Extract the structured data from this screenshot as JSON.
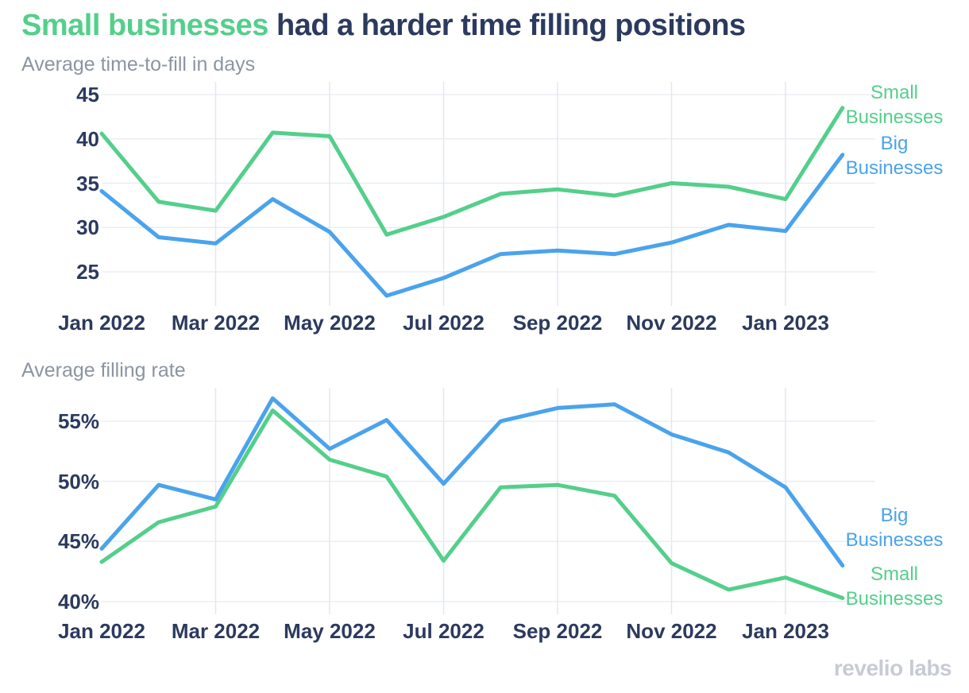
{
  "title": {
    "highlight": "Small businesses",
    "rest": " had a harder time filling positions"
  },
  "watermark": {
    "text": "revelio labs"
  },
  "colors": {
    "small_businesses": "#54CF8B",
    "big_businesses": "#4AA3EC",
    "axis_text": "#2B3A5E",
    "subtitle_text": "#8C95A1",
    "grid_horizontal": "#EBEDF3",
    "grid_vertical": "#E3E7EF",
    "watermark_text": "#C8CBD4",
    "background": "#FFFFFF"
  },
  "chart_data": [
    {
      "type": "line",
      "title": "Average time-to-fill in days",
      "unit": "days",
      "x": [
        "Jan 2022",
        "Feb 2022",
        "Mar 2022",
        "Apr 2022",
        "May 2022",
        "Jun 2022",
        "Jul 2022",
        "Aug 2022",
        "Sep 2022",
        "Oct 2022",
        "Nov 2022",
        "Dec 2022",
        "Jan 2023",
        "Feb 2023"
      ],
      "x_tick_indices": [
        0,
        2,
        4,
        6,
        8,
        10,
        12
      ],
      "x_tick_labels": [
        "Jan 2022",
        "Mar 2022",
        "May 2022",
        "Jul 2022",
        "Sep 2022",
        "Nov 2022",
        "Jan 2023"
      ],
      "y_ticks": [
        45,
        40,
        35,
        30,
        25
      ],
      "y_tick_labels": [
        "45",
        "40",
        "35",
        "30",
        "25"
      ],
      "ylim": [
        21,
        46
      ],
      "grid": true,
      "legend_position": "right",
      "series": [
        {
          "name": "Small Businesses",
          "color_key": "small_businesses",
          "values": [
            40.6,
            32.9,
            31.9,
            40.7,
            40.3,
            29.2,
            31.2,
            33.8,
            34.3,
            33.6,
            35.0,
            34.6,
            33.2,
            43.5
          ]
        },
        {
          "name": "Big Businesses",
          "color_key": "big_businesses",
          "values": [
            34.1,
            28.9,
            28.2,
            33.2,
            29.5,
            22.3,
            24.3,
            27.0,
            27.4,
            27.0,
            28.3,
            30.3,
            29.6,
            38.2
          ]
        }
      ],
      "legend": [
        {
          "lines": [
            "Small",
            "Businesses"
          ],
          "color_key": "small_businesses"
        },
        {
          "lines": [
            "Big",
            "Businesses"
          ],
          "color_key": "big_businesses"
        }
      ]
    },
    {
      "type": "line",
      "title": "Average filling rate",
      "unit": "%",
      "x": [
        "Jan 2022",
        "Feb 2022",
        "Mar 2022",
        "Apr 2022",
        "May 2022",
        "Jun 2022",
        "Jul 2022",
        "Aug 2022",
        "Sep 2022",
        "Oct 2022",
        "Nov 2022",
        "Dec 2022",
        "Jan 2023",
        "Feb 2023"
      ],
      "x_tick_indices": [
        0,
        2,
        4,
        6,
        8,
        10,
        12
      ],
      "x_tick_labels": [
        "Jan 2022",
        "Mar 2022",
        "May 2022",
        "Jul 2022",
        "Sep 2022",
        "Nov 2022",
        "Jan 2023"
      ],
      "y_ticks": [
        55,
        50,
        45,
        40
      ],
      "y_tick_labels": [
        "55%",
        "50%",
        "45%",
        "40%"
      ],
      "ylim": [
        39,
        58
      ],
      "grid": true,
      "legend_position": "right",
      "series": [
        {
          "name": "Small Businesses",
          "color_key": "small_businesses",
          "values": [
            43.3,
            46.6,
            47.9,
            55.9,
            51.8,
            50.4,
            43.4,
            49.5,
            49.7,
            48.8,
            43.2,
            41.0,
            42.0,
            40.3
          ]
        },
        {
          "name": "Big Businesses",
          "color_key": "big_businesses",
          "values": [
            44.4,
            49.7,
            48.5,
            56.9,
            52.7,
            55.1,
            49.8,
            55.0,
            56.1,
            56.4,
            53.9,
            52.4,
            49.5,
            43.0
          ]
        }
      ],
      "legend": [
        {
          "lines": [
            "Big",
            "Businesses"
          ],
          "color_key": "big_businesses"
        },
        {
          "lines": [
            "Small",
            "Businesses"
          ],
          "color_key": "small_businesses"
        }
      ]
    }
  ]
}
